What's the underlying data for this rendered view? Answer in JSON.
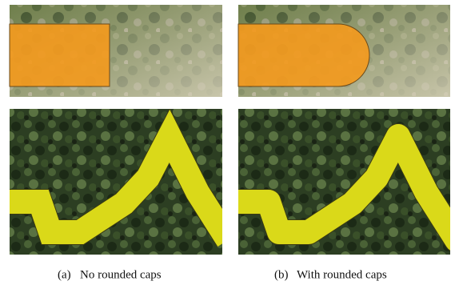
{
  "subfigures": [
    {
      "label": "(a)",
      "caption": "No rounded caps"
    },
    {
      "label": "(b)",
      "caption": "With rounded caps"
    }
  ]
}
